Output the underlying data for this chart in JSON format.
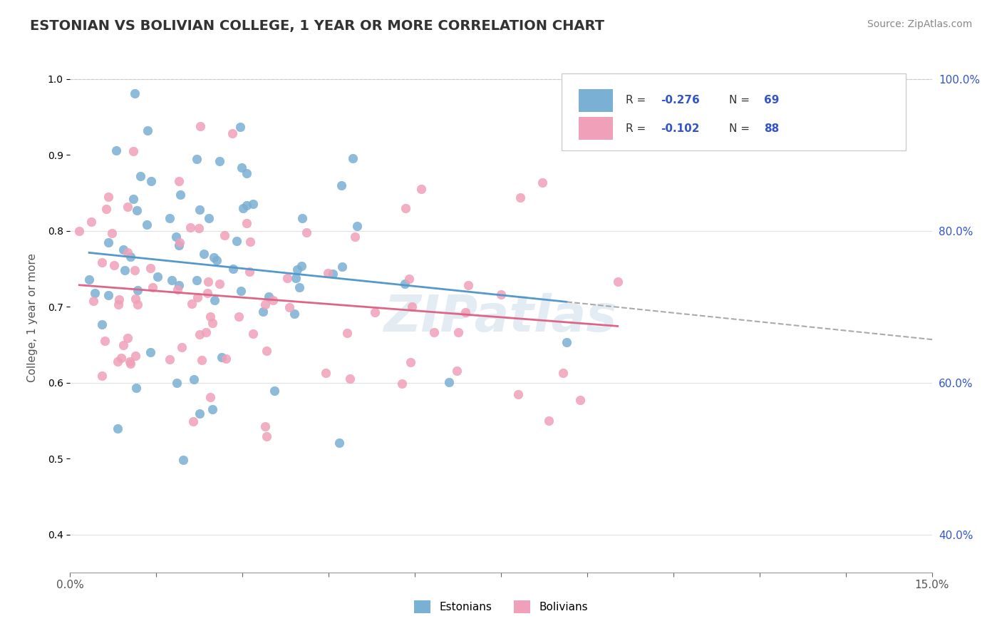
{
  "title": "ESTONIAN VS BOLIVIAN COLLEGE, 1 YEAR OR MORE CORRELATION CHART",
  "source_text": "Source: ZipAtlas.com",
  "xlabel": "",
  "ylabel": "College, 1 year or more",
  "xlim": [
    0.0,
    0.15
  ],
  "ylim": [
    0.35,
    1.02
  ],
  "xticks": [
    0.0,
    0.015,
    0.03,
    0.045,
    0.06,
    0.075,
    0.09,
    0.105,
    0.12,
    0.135,
    0.15
  ],
  "xtick_labels": [
    "0.0%",
    "",
    "",
    "",
    "",
    "",
    "",
    "",
    "",
    "",
    "15.0%"
  ],
  "yticks": [
    0.4,
    0.6,
    0.8,
    1.0
  ],
  "ytick_labels": [
    "40.0%",
    "60.0%",
    "80.0%",
    "100.0%"
  ],
  "legend_entries": [
    {
      "label": "R = -0.276   N = 69",
      "color": "#a8c4e0"
    },
    {
      "label": "R = -0.102   N = 88",
      "color": "#f0b8c8"
    }
  ],
  "estonian_color": "#7ab0d4",
  "bolivian_color": "#f0a0b8",
  "estonian_r": -0.276,
  "estonian_n": 69,
  "bolivian_r": -0.102,
  "bolivian_n": 88,
  "watermark": "ZIPatlas",
  "background_color": "#ffffff",
  "grid_color": "#e0e0e0",
  "legend_r_color": "#3355cc",
  "legend_n_color": "#3355cc"
}
